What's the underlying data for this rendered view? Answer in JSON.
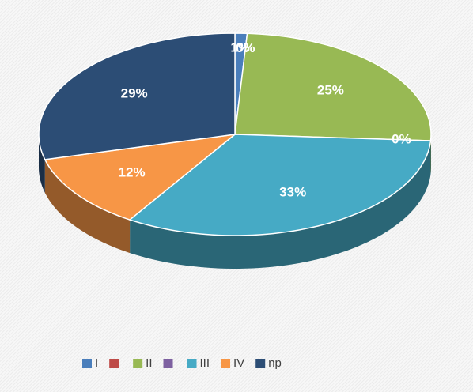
{
  "chart_data": {
    "type": "pie",
    "categories": [
      "I",
      null,
      "II",
      null,
      "III",
      "IV",
      "np"
    ],
    "values": [
      1,
      0,
      25,
      0,
      33,
      12,
      29
    ],
    "value_labels": [
      "1%",
      "0%",
      "25%",
      "0%",
      "33%",
      "12%",
      "29%"
    ],
    "colors": [
      "#4a7ebb",
      "#be4b48",
      "#98b954",
      "#7d60a0",
      "#46aac5",
      "#f79646",
      "#2c4d75"
    ],
    "legend": "bottom"
  }
}
